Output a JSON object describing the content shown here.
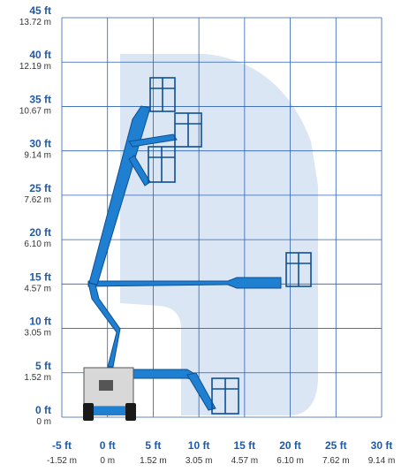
{
  "colors": {
    "grid": "#2c62b0",
    "envelope": "#dbe6f4",
    "boom": "#1f7fd0",
    "boom_dark": "#0d4f94",
    "label_ft": "#1f5aa8",
    "label_m": "#333333",
    "base": "#d8d8d8",
    "tires": "#1a1a1a"
  },
  "y_axis": [
    {
      "ft": "45 ft",
      "m": "13.72 m"
    },
    {
      "ft": "40 ft",
      "m": "12.19 m"
    },
    {
      "ft": "35 ft",
      "m": "10.67 m"
    },
    {
      "ft": "30 ft",
      "m": "9.14 m"
    },
    {
      "ft": "25 ft",
      "m": "7.62 m"
    },
    {
      "ft": "20 ft",
      "m": "6.10 m"
    },
    {
      "ft": "15 ft",
      "m": "4.57 m"
    },
    {
      "ft": "10 ft",
      "m": "3.05 m"
    },
    {
      "ft": "5 ft",
      "m": "1.52 m"
    },
    {
      "ft": "0 ft",
      "m": "0 m"
    }
  ],
  "x_axis": [
    {
      "ft": "-5 ft",
      "m": "-1.52 m"
    },
    {
      "ft": "0 ft",
      "m": "0 m"
    },
    {
      "ft": "5 ft",
      "m": "1.52 m"
    },
    {
      "ft": "10 ft",
      "m": "3.05 m"
    },
    {
      "ft": "15 ft",
      "m": "4.57 m"
    },
    {
      "ft": "20 ft",
      "m": "6.10 m"
    },
    {
      "ft": "25 ft",
      "m": "7.62 m"
    },
    {
      "ft": "30 ft",
      "m": "9.14 m"
    }
  ],
  "icons": [
    "articulating-boom-lift-icon"
  ]
}
